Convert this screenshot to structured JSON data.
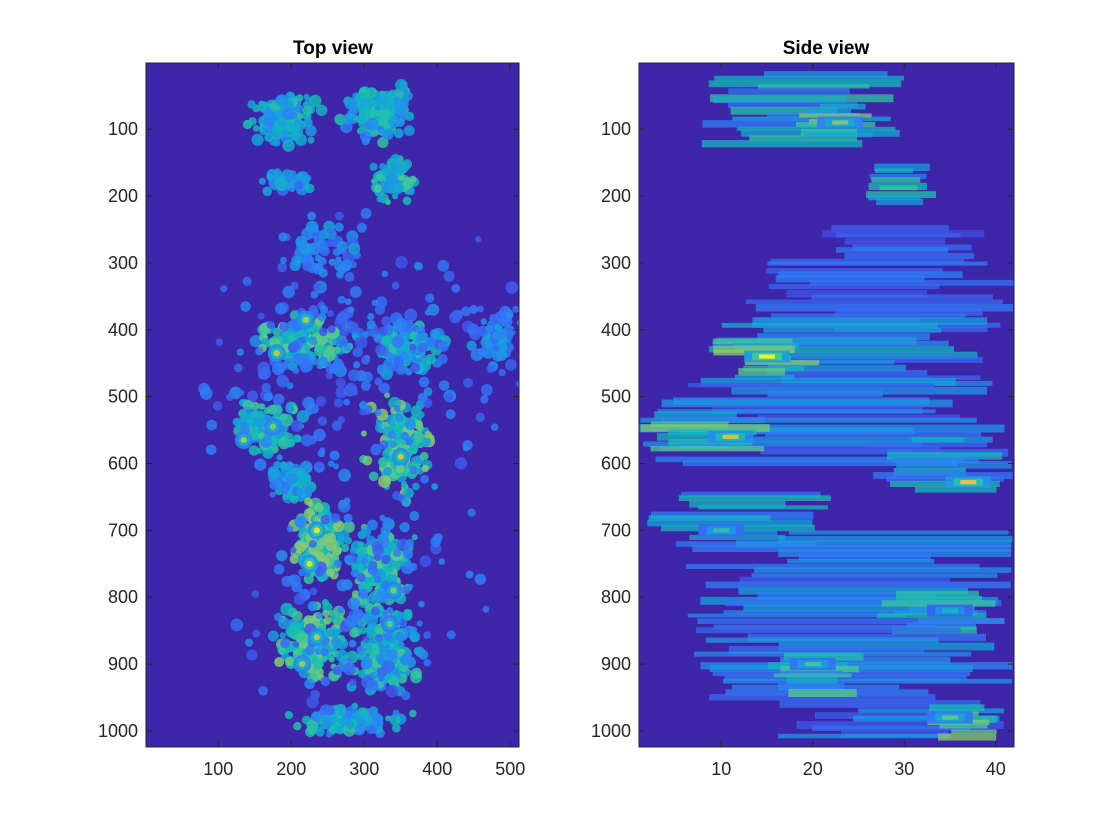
{
  "figure": {
    "background": "#ffffff"
  },
  "colormap": {
    "name": "parula",
    "stops": [
      "#3e26a8",
      "#4151e8",
      "#2f7ff9",
      "#14a5da",
      "#13bdb6",
      "#51cc8a",
      "#aec95b",
      "#f5bd3b",
      "#f9fb14"
    ],
    "empty": "#3e26a8"
  },
  "chart_data": [
    {
      "type": "heatmap",
      "title": "Top view",
      "xlabel": "",
      "ylabel": "",
      "xlim": [
        1,
        512
      ],
      "ylim": [
        1,
        1024
      ],
      "y_reversed": true,
      "xticks": [
        100,
        200,
        300,
        400,
        500
      ],
      "yticks": [
        100,
        200,
        300,
        400,
        500,
        600,
        700,
        800,
        900,
        1000
      ],
      "clusters": [
        {
          "x": 190,
          "y": 85,
          "rx": 40,
          "ry": 35,
          "n": 130,
          "intensity": 0.45
        },
        {
          "x": 320,
          "y": 75,
          "rx": 45,
          "ry": 40,
          "n": 150,
          "intensity": 0.45
        },
        {
          "x": 190,
          "y": 178,
          "rx": 35,
          "ry": 15,
          "n": 50,
          "intensity": 0.35
        },
        {
          "x": 340,
          "y": 175,
          "rx": 30,
          "ry": 30,
          "n": 70,
          "intensity": 0.5
        },
        {
          "x": 240,
          "y": 280,
          "rx": 60,
          "ry": 40,
          "n": 60,
          "intensity": 0.3
        },
        {
          "x": 220,
          "y": 420,
          "rx": 60,
          "ry": 35,
          "n": 140,
          "intensity": 0.55
        },
        {
          "x": 360,
          "y": 430,
          "rx": 45,
          "ry": 35,
          "n": 110,
          "intensity": 0.45
        },
        {
          "x": 480,
          "y": 410,
          "rx": 30,
          "ry": 40,
          "n": 50,
          "intensity": 0.3
        },
        {
          "x": 170,
          "y": 545,
          "rx": 45,
          "ry": 40,
          "n": 110,
          "intensity": 0.5
        },
        {
          "x": 350,
          "y": 570,
          "rx": 40,
          "ry": 70,
          "n": 170,
          "intensity": 0.6
        },
        {
          "x": 200,
          "y": 630,
          "rx": 35,
          "ry": 30,
          "n": 60,
          "intensity": 0.4
        },
        {
          "x": 240,
          "y": 720,
          "rx": 35,
          "ry": 60,
          "n": 170,
          "intensity": 0.65
        },
        {
          "x": 320,
          "y": 760,
          "rx": 40,
          "ry": 60,
          "n": 160,
          "intensity": 0.55
        },
        {
          "x": 230,
          "y": 870,
          "rx": 45,
          "ry": 55,
          "n": 200,
          "intensity": 0.6
        },
        {
          "x": 330,
          "y": 880,
          "rx": 40,
          "ry": 60,
          "n": 170,
          "intensity": 0.5
        },
        {
          "x": 280,
          "y": 985,
          "rx": 70,
          "ry": 20,
          "n": 120,
          "intensity": 0.45
        },
        {
          "x": 300,
          "y": 450,
          "rx": 200,
          "ry": 180,
          "n": 220,
          "intensity": 0.25
        },
        {
          "x": 290,
          "y": 800,
          "rx": 150,
          "ry": 200,
          "n": 150,
          "intensity": 0.25
        }
      ],
      "hotspots": [
        {
          "x": 180,
          "y": 435,
          "v": 0.85
        },
        {
          "x": 220,
          "y": 385,
          "v": 0.8
        },
        {
          "x": 135,
          "y": 565,
          "v": 0.75
        },
        {
          "x": 175,
          "y": 545,
          "v": 0.7
        },
        {
          "x": 350,
          "y": 590,
          "v": 0.85
        },
        {
          "x": 235,
          "y": 700,
          "v": 0.95
        },
        {
          "x": 225,
          "y": 750,
          "v": 0.95
        },
        {
          "x": 235,
          "y": 860,
          "v": 0.8
        },
        {
          "x": 215,
          "y": 900,
          "v": 0.75
        },
        {
          "x": 340,
          "y": 790,
          "v": 0.7
        },
        {
          "x": 335,
          "y": 840,
          "v": 0.65
        }
      ]
    },
    {
      "type": "heatmap",
      "title": "Side view",
      "xlabel": "",
      "ylabel": "",
      "xlim": [
        1,
        42
      ],
      "ylim": [
        1,
        1024
      ],
      "y_reversed": true,
      "xticks": [
        10,
        20,
        30,
        40
      ],
      "yticks": [
        100,
        200,
        300,
        400,
        500,
        600,
        700,
        800,
        900,
        1000
      ],
      "ridges": [
        {
          "y0": 10,
          "y1": 120,
          "x0": 7,
          "x1": 30,
          "intensity": 0.45
        },
        {
          "y0": 60,
          "y1": 110,
          "x0": 18,
          "x1": 27,
          "intensity": 0.65
        },
        {
          "y0": 150,
          "y1": 210,
          "x0": 24,
          "x1": 34,
          "intensity": 0.45
        },
        {
          "y0": 240,
          "y1": 290,
          "x0": 20,
          "x1": 42,
          "intensity": 0.2
        },
        {
          "y0": 290,
          "y1": 400,
          "x0": 12,
          "x1": 42,
          "intensity": 0.2
        },
        {
          "y0": 380,
          "y1": 480,
          "x0": 8,
          "x1": 40,
          "intensity": 0.35
        },
        {
          "y0": 410,
          "y1": 470,
          "x0": 9,
          "x1": 21,
          "intensity": 0.6
        },
        {
          "y0": 470,
          "y1": 600,
          "x0": 1,
          "x1": 42,
          "intensity": 0.3
        },
        {
          "y0": 520,
          "y1": 580,
          "x0": 1,
          "x1": 16,
          "intensity": 0.55
        },
        {
          "y0": 560,
          "y1": 640,
          "x0": 26,
          "x1": 42,
          "intensity": 0.4
        },
        {
          "y0": 640,
          "y1": 720,
          "x0": 1,
          "x1": 22,
          "intensity": 0.4
        },
        {
          "y0": 700,
          "y1": 830,
          "x0": 6,
          "x1": 42,
          "intensity": 0.3
        },
        {
          "y0": 790,
          "y1": 850,
          "x0": 26,
          "x1": 42,
          "intensity": 0.45
        },
        {
          "y0": 830,
          "y1": 950,
          "x0": 5,
          "x1": 42,
          "intensity": 0.3
        },
        {
          "y0": 880,
          "y1": 940,
          "x0": 15,
          "x1": 26,
          "intensity": 0.5
        },
        {
          "y0": 950,
          "y1": 1010,
          "x0": 16,
          "x1": 42,
          "intensity": 0.3
        },
        {
          "y0": 960,
          "y1": 1010,
          "x0": 32,
          "x1": 41,
          "intensity": 0.55
        }
      ],
      "hotspots": [
        {
          "x": 15,
          "y": 440,
          "v": 1.0
        },
        {
          "x": 11,
          "y": 560,
          "v": 0.85
        },
        {
          "x": 37,
          "y": 628,
          "v": 0.9
        },
        {
          "x": 23,
          "y": 90,
          "v": 0.7
        },
        {
          "x": 35,
          "y": 980,
          "v": 0.65
        },
        {
          "x": 20,
          "y": 900,
          "v": 0.6
        },
        {
          "x": 10,
          "y": 700,
          "v": 0.55
        },
        {
          "x": 35,
          "y": 820,
          "v": 0.5
        }
      ]
    }
  ]
}
